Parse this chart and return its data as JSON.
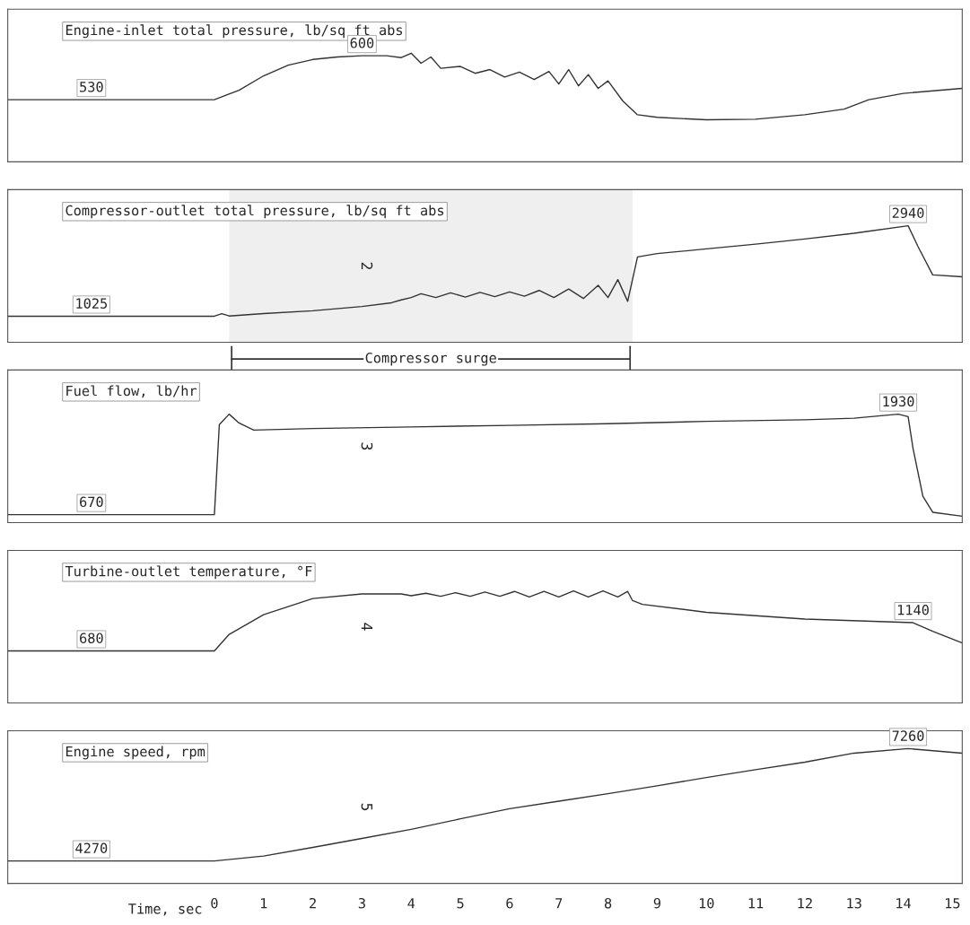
{
  "chart_data": [
    {
      "type": "line",
      "title": "Engine-inlet total pressure, lb/sq ft abs",
      "xlim": [
        -4.2,
        15.2
      ],
      "ylim": [
        431,
        674
      ],
      "tick_labels": false,
      "color": "#333333",
      "x": [
        -4.2,
        -2.5,
        0,
        0.5,
        1,
        1.5,
        2,
        2.5,
        3,
        3.5,
        3.8,
        4.0,
        4.2,
        4.4,
        4.6,
        5,
        5.3,
        5.6,
        5.9,
        6.2,
        6.5,
        6.8,
        7.0,
        7.2,
        7.4,
        7.6,
        7.8,
        8.0,
        8.3,
        8.6,
        9,
        10,
        11,
        12,
        12.8,
        13.3,
        14,
        15.2
      ],
      "values": [
        530,
        530,
        530,
        545,
        568,
        585,
        594,
        598,
        600,
        600,
        597,
        604,
        588,
        598,
        580,
        583,
        572,
        578,
        566,
        574,
        562,
        575,
        555,
        578,
        552,
        570,
        548,
        560,
        528,
        506,
        502,
        498,
        499,
        506,
        515,
        530,
        540,
        548
      ],
      "value_labels": [
        null,
        "530",
        null,
        null,
        null,
        null,
        null,
        null,
        "600",
        null,
        null,
        null,
        null,
        null,
        null,
        null,
        null,
        null,
        null,
        null,
        null,
        null,
        null,
        null,
        null,
        null,
        null,
        null,
        null,
        null,
        null,
        null,
        null,
        null,
        null,
        null,
        null,
        null
      ]
    },
    {
      "type": "line",
      "title": "Compressor-outlet total pressure, lb/sq ft abs",
      "xlim": [
        -4.2,
        15.2
      ],
      "ylim": [
        474,
        3704
      ],
      "tick_labels": false,
      "color": "#333333",
      "annotations": [
        "2"
      ],
      "bands": [
        {
          "axis": "x",
          "from": 0.3,
          "to": 8.5,
          "label": "Compressor surge",
          "color": "#333333"
        }
      ],
      "x": [
        -4.2,
        -2.5,
        0,
        0.15,
        0.3,
        1,
        2,
        3,
        3.6,
        3.8,
        4.0,
        4.2,
        4.5,
        4.8,
        5.1,
        5.4,
        5.7,
        6,
        6.3,
        6.6,
        6.9,
        7.2,
        7.5,
        7.8,
        8.0,
        8.2,
        8.4,
        8.6,
        9,
        10,
        11,
        12,
        13,
        14.1,
        14.3,
        14.6,
        15.2
      ],
      "values": [
        1025,
        1025,
        1025,
        1080,
        1030,
        1080,
        1140,
        1230,
        1310,
        1370,
        1420,
        1500,
        1420,
        1520,
        1430,
        1530,
        1440,
        1540,
        1450,
        1570,
        1420,
        1600,
        1400,
        1680,
        1420,
        1800,
        1340,
        2280,
        2350,
        2450,
        2550,
        2660,
        2780,
        2940,
        2500,
        1900,
        1860
      ],
      "value_labels": [
        null,
        "1025",
        null,
        null,
        null,
        null,
        null,
        null,
        null,
        null,
        null,
        null,
        null,
        null,
        null,
        null,
        null,
        null,
        null,
        null,
        null,
        null,
        null,
        null,
        null,
        null,
        null,
        null,
        null,
        null,
        null,
        null,
        null,
        "2940",
        null,
        null,
        null
      ]
    },
    {
      "type": "line",
      "title": "Fuel flow, lb/hr",
      "xlim": [
        -4.2,
        15.2
      ],
      "ylim": [
        570,
        2484
      ],
      "tick_labels": false,
      "color": "#333333",
      "annotations": [
        "3"
      ],
      "x": [
        -4.2,
        -2.5,
        0,
        0.1,
        0.3,
        0.5,
        0.8,
        2,
        4,
        6,
        8,
        10,
        12,
        13,
        13.9,
        14.1,
        14.2,
        14.4,
        14.6,
        15.2
      ],
      "values": [
        670,
        670,
        670,
        1800,
        1930,
        1820,
        1730,
        1750,
        1770,
        1790,
        1810,
        1840,
        1860,
        1880,
        1930,
        1900,
        1500,
        900,
        700,
        650
      ],
      "value_labels": [
        null,
        "670",
        null,
        null,
        null,
        null,
        null,
        null,
        null,
        null,
        null,
        null,
        null,
        null,
        "1930",
        null,
        null,
        null,
        null,
        null
      ]
    },
    {
      "type": "line",
      "title": "Turbine-outlet temperature, °F",
      "xlim": [
        -4.2,
        15.2
      ],
      "ylim": [
        -170,
        2320
      ],
      "tick_labels": false,
      "color": "#333333",
      "annotations": [
        "4"
      ],
      "x": [
        -4.2,
        -2.5,
        0,
        0.3,
        1,
        2,
        3,
        3.8,
        4.0,
        4.3,
        4.6,
        4.9,
        5.2,
        5.5,
        5.8,
        6.1,
        6.4,
        6.7,
        7.0,
        7.3,
        7.6,
        7.9,
        8.2,
        8.4,
        8.5,
        8.7,
        10,
        12,
        14.2,
        14.6,
        15.2
      ],
      "values": [
        680,
        680,
        680,
        950,
        1270,
        1535,
        1610,
        1610,
        1580,
        1620,
        1570,
        1630,
        1570,
        1640,
        1570,
        1650,
        1560,
        1650,
        1560,
        1660,
        1560,
        1660,
        1560,
        1650,
        1500,
        1440,
        1310,
        1200,
        1140,
        1000,
        810
      ],
      "value_labels": [
        null,
        "680",
        null,
        null,
        null,
        null,
        null,
        null,
        null,
        null,
        null,
        null,
        null,
        null,
        null,
        null,
        null,
        null,
        null,
        null,
        null,
        null,
        null,
        null,
        null,
        null,
        null,
        null,
        "1140",
        null,
        null
      ]
    },
    {
      "type": "line",
      "title": "Engine speed, rpm",
      "xlabel": "Time, sec",
      "xlim": [
        -4.2,
        15.2
      ],
      "xticks": [
        0,
        1,
        2,
        3,
        4,
        5,
        6,
        7,
        8,
        9,
        10,
        11,
        12,
        13,
        14,
        15
      ],
      "ylim": [
        3672,
        7736
      ],
      "tick_labels": "x",
      "color": "#333333",
      "annotations": [
        "5"
      ],
      "x": [
        -4.2,
        -2.5,
        0,
        1,
        2,
        3,
        4,
        5,
        6,
        7,
        8,
        9,
        10,
        11,
        12,
        13,
        14.1,
        15.2
      ],
      "values": [
        4270,
        4270,
        4270,
        4400,
        4630,
        4870,
        5110,
        5390,
        5660,
        5860,
        6060,
        6270,
        6490,
        6700,
        6900,
        7140,
        7260,
        7140
      ],
      "value_labels": [
        null,
        "4270",
        null,
        null,
        null,
        null,
        null,
        null,
        null,
        null,
        null,
        null,
        null,
        null,
        null,
        null,
        "7260",
        null
      ]
    }
  ]
}
